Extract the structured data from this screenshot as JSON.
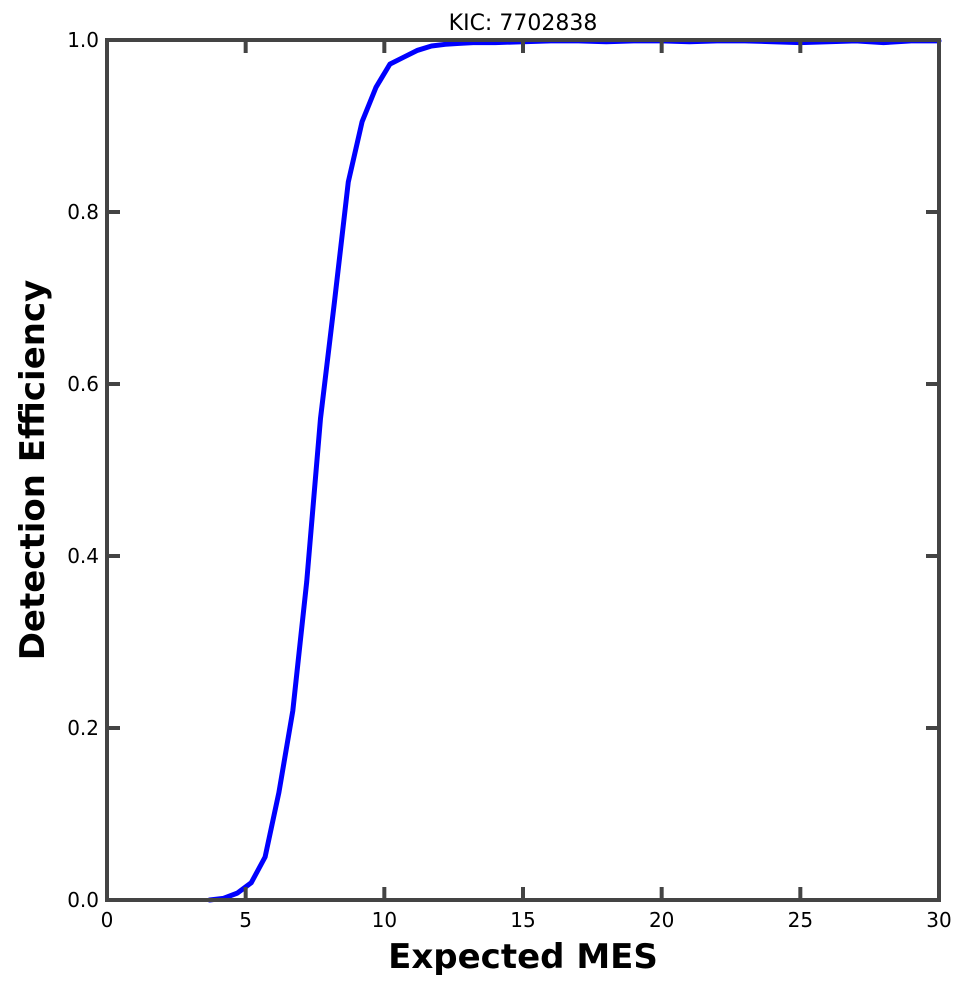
{
  "chart_data": {
    "type": "line",
    "title": "KIC: 7702838",
    "xlabel": "Expected MES",
    "ylabel": "Detection Efficiency",
    "xlim": [
      0,
      30
    ],
    "ylim": [
      0,
      1.0
    ],
    "x_ticks": [
      0,
      5,
      10,
      15,
      20,
      25,
      30
    ],
    "y_ticks": [
      0.0,
      0.2,
      0.4,
      0.6,
      0.8,
      1.0
    ],
    "x_tick_labels": [
      "0",
      "5",
      "10",
      "15",
      "20",
      "25",
      "30"
    ],
    "y_tick_labels": [
      "0.0",
      "0.2",
      "0.4",
      "0.6",
      "0.8",
      "1.0"
    ],
    "grid": false,
    "legend": "none",
    "series": [
      {
        "color": "#0000ff",
        "x": [
          3.7,
          4.2,
          4.7,
          5.2,
          5.7,
          6.2,
          6.7,
          7.2,
          7.7,
          8.2,
          8.7,
          9.2,
          9.7,
          10.2,
          10.7,
          11.2,
          11.7,
          12.2,
          12.7,
          13.2,
          14.0,
          15.0,
          16.0,
          17.0,
          18.0,
          19.0,
          20.0,
          21.0,
          22.0,
          23.0,
          24.0,
          25.0,
          26.0,
          27.0,
          28.0,
          29.0,
          30.0
        ],
        "y": [
          0.0,
          0.002,
          0.008,
          0.02,
          0.05,
          0.125,
          0.22,
          0.37,
          0.56,
          0.695,
          0.835,
          0.905,
          0.945,
          0.972,
          0.98,
          0.988,
          0.993,
          0.995,
          0.996,
          0.997,
          0.997,
          0.998,
          0.999,
          0.999,
          0.998,
          0.999,
          0.999,
          0.998,
          0.999,
          0.999,
          0.998,
          0.997,
          0.998,
          0.999,
          0.997,
          0.999,
          0.999
        ]
      }
    ]
  }
}
